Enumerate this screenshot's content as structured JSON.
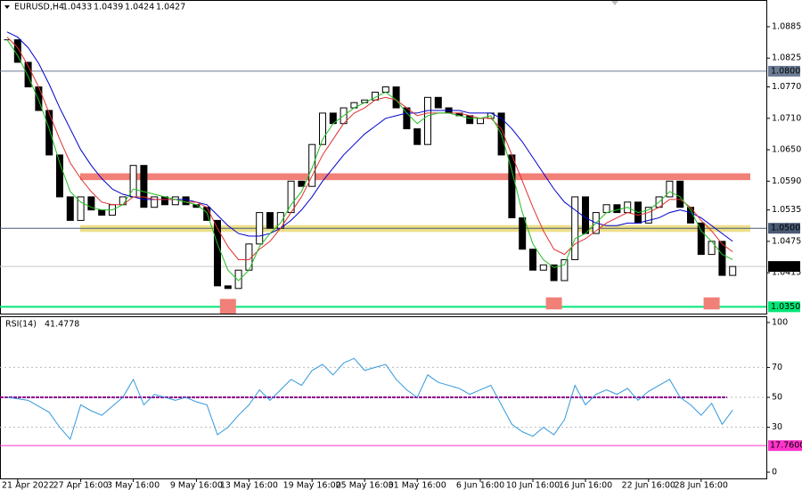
{
  "chart_data": [
    {
      "type": "candlestick",
      "title": "EURUSD,H4",
      "quote": [
        1.0433,
        1.0439,
        1.0424,
        1.0427
      ],
      "categories": [
        null,
        "21 Apr 2022",
        null,
        null,
        null,
        null,
        null,
        "27 Apr 16:00",
        null,
        null,
        null,
        null,
        "3 May 16:00",
        null,
        null,
        null,
        null,
        null,
        "9 May 16:00",
        null,
        null,
        null,
        null,
        "13 May 16:00",
        null,
        null,
        null,
        null,
        null,
        "19 May 16:00",
        null,
        null,
        null,
        null,
        "25 May 16:00",
        null,
        null,
        null,
        null,
        "31 May 16:00",
        null,
        null,
        null,
        null,
        null,
        "6 Jun 16:00",
        null,
        null,
        null,
        null,
        "10 Jun 16:00",
        null,
        null,
        null,
        null,
        "16 Jun 16:00",
        null,
        null,
        null,
        null,
        null,
        "22 Jun 16:00",
        null,
        null,
        null,
        null,
        "28 Jun 16:00",
        null,
        null,
        null
      ],
      "close": [
        1.086,
        1.0817,
        1.077,
        1.0725,
        1.064,
        1.056,
        1.0515,
        1.056,
        1.0535,
        1.0525,
        1.0545,
        1.056,
        1.062,
        1.054,
        1.056,
        1.0545,
        1.056,
        1.0545,
        1.054,
        1.0515,
        1.039,
        1.0385,
        1.042,
        1.047,
        1.053,
        1.05,
        1.053,
        1.059,
        1.058,
        1.066,
        1.072,
        1.07,
        1.073,
        1.074,
        1.0745,
        1.076,
        1.077,
        1.073,
        1.069,
        1.066,
        1.075,
        1.073,
        1.072,
        1.0715,
        1.07,
        1.071,
        1.072,
        1.064,
        1.052,
        1.046,
        1.042,
        1.043,
        1.04,
        1.044,
        1.056,
        1.049,
        1.053,
        1.0545,
        1.053,
        1.055,
        1.051,
        1.054,
        1.056,
        1.059,
        1.054,
        1.051,
        1.045,
        1.0475,
        1.041,
        1.0427
      ],
      "up_color": "#ffffff",
      "down_color": "#000000",
      "series": [
        {
          "color": "#0000cd",
          "values": [
            1.0875,
            1.0865,
            1.0845,
            1.0815,
            1.0775,
            1.073,
            1.069,
            1.065,
            1.062,
            1.0595,
            1.0575,
            1.0565,
            1.056,
            1.0555,
            1.0555,
            1.0555,
            1.0555,
            1.0555,
            1.055,
            1.0545,
            1.0525,
            1.0505,
            1.049,
            1.0485,
            1.0485,
            1.049,
            1.05,
            1.0515,
            1.0535,
            1.056,
            1.059,
            1.0615,
            1.064,
            1.066,
            1.068,
            1.0695,
            1.071,
            1.0715,
            1.072,
            1.072,
            1.0725,
            1.0725,
            1.0725,
            1.0725,
            1.072,
            1.072,
            1.072,
            1.071,
            1.069,
            1.0665,
            1.0635,
            1.0605,
            1.0575,
            1.055,
            1.0535,
            1.052,
            1.051,
            1.0505,
            1.0505,
            1.051,
            1.051,
            1.0515,
            1.052,
            1.053,
            1.0535,
            1.053,
            1.052,
            1.0505,
            1.049,
            1.0475
          ]
        },
        {
          "color": "#e03030",
          "values": [
            1.0865,
            1.0845,
            1.081,
            1.077,
            1.072,
            1.067,
            1.0625,
            1.0595,
            1.057,
            1.055,
            1.0545,
            1.0545,
            1.056,
            1.056,
            1.0555,
            1.0555,
            1.0555,
            1.055,
            1.055,
            1.054,
            1.05,
            1.0465,
            1.044,
            1.044,
            1.046,
            1.0475,
            1.05,
            1.053,
            1.056,
            1.06,
            1.064,
            1.067,
            1.07,
            1.072,
            1.073,
            1.0745,
            1.075,
            1.0745,
            1.073,
            1.0715,
            1.072,
            1.072,
            1.072,
            1.072,
            1.0715,
            1.071,
            1.071,
            1.069,
            1.064,
            1.059,
            1.054,
            1.0495,
            1.046,
            1.045,
            1.047,
            1.048,
            1.0495,
            1.051,
            1.052,
            1.053,
            1.0525,
            1.053,
            1.054,
            1.0555,
            1.0555,
            1.054,
            1.0515,
            1.0495,
            1.047,
            1.0455
          ]
        },
        {
          "color": "#22c022",
          "values": [
            1.086,
            1.083,
            1.079,
            1.0745,
            1.069,
            1.0625,
            1.057,
            1.055,
            1.054,
            1.0535,
            1.0535,
            1.0545,
            1.0575,
            1.057,
            1.0565,
            1.056,
            1.0555,
            1.055,
            1.0545,
            1.053,
            1.047,
            1.042,
            1.04,
            1.042,
            1.0465,
            1.049,
            1.051,
            1.0545,
            1.057,
            1.0615,
            1.067,
            1.07,
            1.0715,
            1.073,
            1.074,
            1.075,
            1.076,
            1.0745,
            1.072,
            1.07,
            1.0715,
            1.072,
            1.072,
            1.0715,
            1.071,
            1.071,
            1.0715,
            1.068,
            1.061,
            1.053,
            1.047,
            1.044,
            1.0425,
            1.043,
            1.048,
            1.049,
            1.051,
            1.053,
            1.0535,
            1.054,
            1.053,
            1.0535,
            1.055,
            1.057,
            1.056,
            1.0535,
            1.0495,
            1.0475,
            1.045,
            1.044
          ]
        }
      ],
      "ylim": [
        1.0337,
        1.0936
      ],
      "yticks": [
        {
          "value": 1.0885,
          "label": "1.0885"
        },
        {
          "value": 1.0825,
          "label": "1.0825"
        },
        {
          "value": 1.077,
          "label": "1.0770"
        },
        {
          "value": 1.071,
          "label": "1.0710"
        },
        {
          "value": 1.065,
          "label": "1.0650"
        },
        {
          "value": 1.059,
          "label": "1.0590"
        },
        {
          "value": 1.0535,
          "label": "1.0535"
        },
        {
          "value": 1.0475,
          "label": "1.0475"
        },
        {
          "value": 1.0415,
          "label": "1.0415"
        }
      ],
      "levels": [
        {
          "value": 1.08,
          "label": "1.0800",
          "color": "#6b7b93"
        },
        {
          "value": 1.05,
          "label": "1.0500",
          "color": "#4a5a73"
        },
        {
          "value": 1.0427,
          "label": "1.0427",
          "color": "#000000"
        },
        {
          "value": 1.035,
          "label": "1.0350",
          "color": "#00e676"
        }
      ],
      "zones": [
        {
          "from": 1.0592,
          "to": 1.0605,
          "color": "#f08078"
        },
        {
          "from": 1.0493,
          "to": 1.0506,
          "color": "#eee08a"
        }
      ],
      "boxes": [
        {
          "index": 21,
          "from": 1.0337,
          "to": 1.0365,
          "color": "#f08078"
        },
        {
          "index": 52,
          "from": 1.0345,
          "to": 1.0368,
          "color": "#f08078"
        },
        {
          "index": 67,
          "from": 1.0345,
          "to": 1.0368,
          "color": "#f08078"
        }
      ]
    },
    {
      "type": "line",
      "title": "RSI(14)",
      "last": 41.4778,
      "color": "#3399dd",
      "values": [
        50,
        49,
        48,
        44,
        40,
        30,
        22,
        45,
        41,
        38,
        44,
        50,
        62,
        45,
        52,
        50,
        48,
        50,
        47,
        45,
        25,
        30,
        38,
        45,
        55,
        48,
        55,
        62,
        58,
        68,
        72,
        65,
        73,
        76,
        68,
        70,
        72,
        62,
        55,
        50,
        65,
        60,
        58,
        56,
        52,
        55,
        58,
        45,
        32,
        27,
        24,
        30,
        25,
        35,
        58,
        45,
        52,
        55,
        52,
        56,
        48,
        54,
        58,
        62,
        50,
        45,
        38,
        46,
        32,
        41.4778
      ],
      "ylim": [
        0,
        100
      ],
      "yticks": [
        100,
        70,
        50,
        30,
        0
      ],
      "levels": [
        {
          "value": 50,
          "color": "#8b008b"
        },
        {
          "value": 17.76,
          "label": "17.7600",
          "color": "#ff33cc"
        }
      ]
    }
  ]
}
